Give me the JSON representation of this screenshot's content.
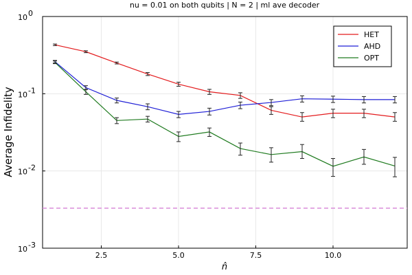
{
  "chart_data": {
    "type": "line",
    "title": "nu = 0.01 on both qubits | N = 2 | ml ave decoder",
    "xlabel": "n̂",
    "ylabel": "Average Infidelity",
    "yscale": "log",
    "xlim": [
      0.6,
      12.4
    ],
    "ylim": [
      0.001,
      1.0
    ],
    "x_ticks": [
      "2.5",
      "5.0",
      "7.5",
      "10.0"
    ],
    "x_tick_values": [
      2.5,
      5.0,
      7.5,
      10.0
    ],
    "y_tick_values": [
      0.001,
      0.01,
      0.1,
      1.0
    ],
    "y_ticks": [
      {
        "base": "10",
        "exp": "-3"
      },
      {
        "base": "10",
        "exp": "-2"
      },
      {
        "base": "10",
        "exp": "-1"
      },
      {
        "base": "10",
        "exp": "0"
      }
    ],
    "grid": true,
    "legend_position": "top-right",
    "x": [
      1,
      2,
      3,
      4,
      5,
      6,
      7,
      8,
      9,
      10,
      11,
      12
    ],
    "series": [
      {
        "name": "HET",
        "color": "#e31a1c",
        "values": [
          0.43,
          0.35,
          0.25,
          0.18,
          0.133,
          0.106,
          0.095,
          0.061,
          0.05,
          0.056,
          0.056,
          0.05
        ],
        "err_low": [
          0.42,
          0.34,
          0.243,
          0.172,
          0.125,
          0.098,
          0.087,
          0.054,
          0.044,
          0.049,
          0.049,
          0.044
        ],
        "err_high": [
          0.44,
          0.36,
          0.257,
          0.188,
          0.141,
          0.114,
          0.103,
          0.068,
          0.057,
          0.063,
          0.063,
          0.057
        ]
      },
      {
        "name": "AHD",
        "color": "#1f1fd6",
        "values": [
          0.26,
          0.12,
          0.082,
          0.068,
          0.054,
          0.059,
          0.071,
          0.077,
          0.086,
          0.085,
          0.084,
          0.084
        ],
        "err_low": [
          0.25,
          0.113,
          0.076,
          0.062,
          0.049,
          0.053,
          0.064,
          0.07,
          0.078,
          0.077,
          0.076,
          0.076
        ],
        "err_high": [
          0.27,
          0.127,
          0.088,
          0.074,
          0.059,
          0.065,
          0.078,
          0.084,
          0.094,
          0.093,
          0.092,
          0.092
        ]
      },
      {
        "name": "OPT",
        "color": "#1e7a1e",
        "values": [
          0.255,
          0.106,
          0.045,
          0.047,
          0.028,
          0.032,
          0.0195,
          0.0163,
          0.0178,
          0.0115,
          0.0152,
          0.0116
        ],
        "err_low": [
          0.245,
          0.098,
          0.041,
          0.043,
          0.024,
          0.028,
          0.016,
          0.013,
          0.0145,
          0.0085,
          0.0122,
          0.0084
        ],
        "err_high": [
          0.265,
          0.114,
          0.049,
          0.051,
          0.032,
          0.036,
          0.023,
          0.02,
          0.022,
          0.0145,
          0.019,
          0.015
        ]
      }
    ],
    "reference_line": {
      "value": 0.0033,
      "color": "#d98cd9",
      "style": "dashed"
    }
  }
}
